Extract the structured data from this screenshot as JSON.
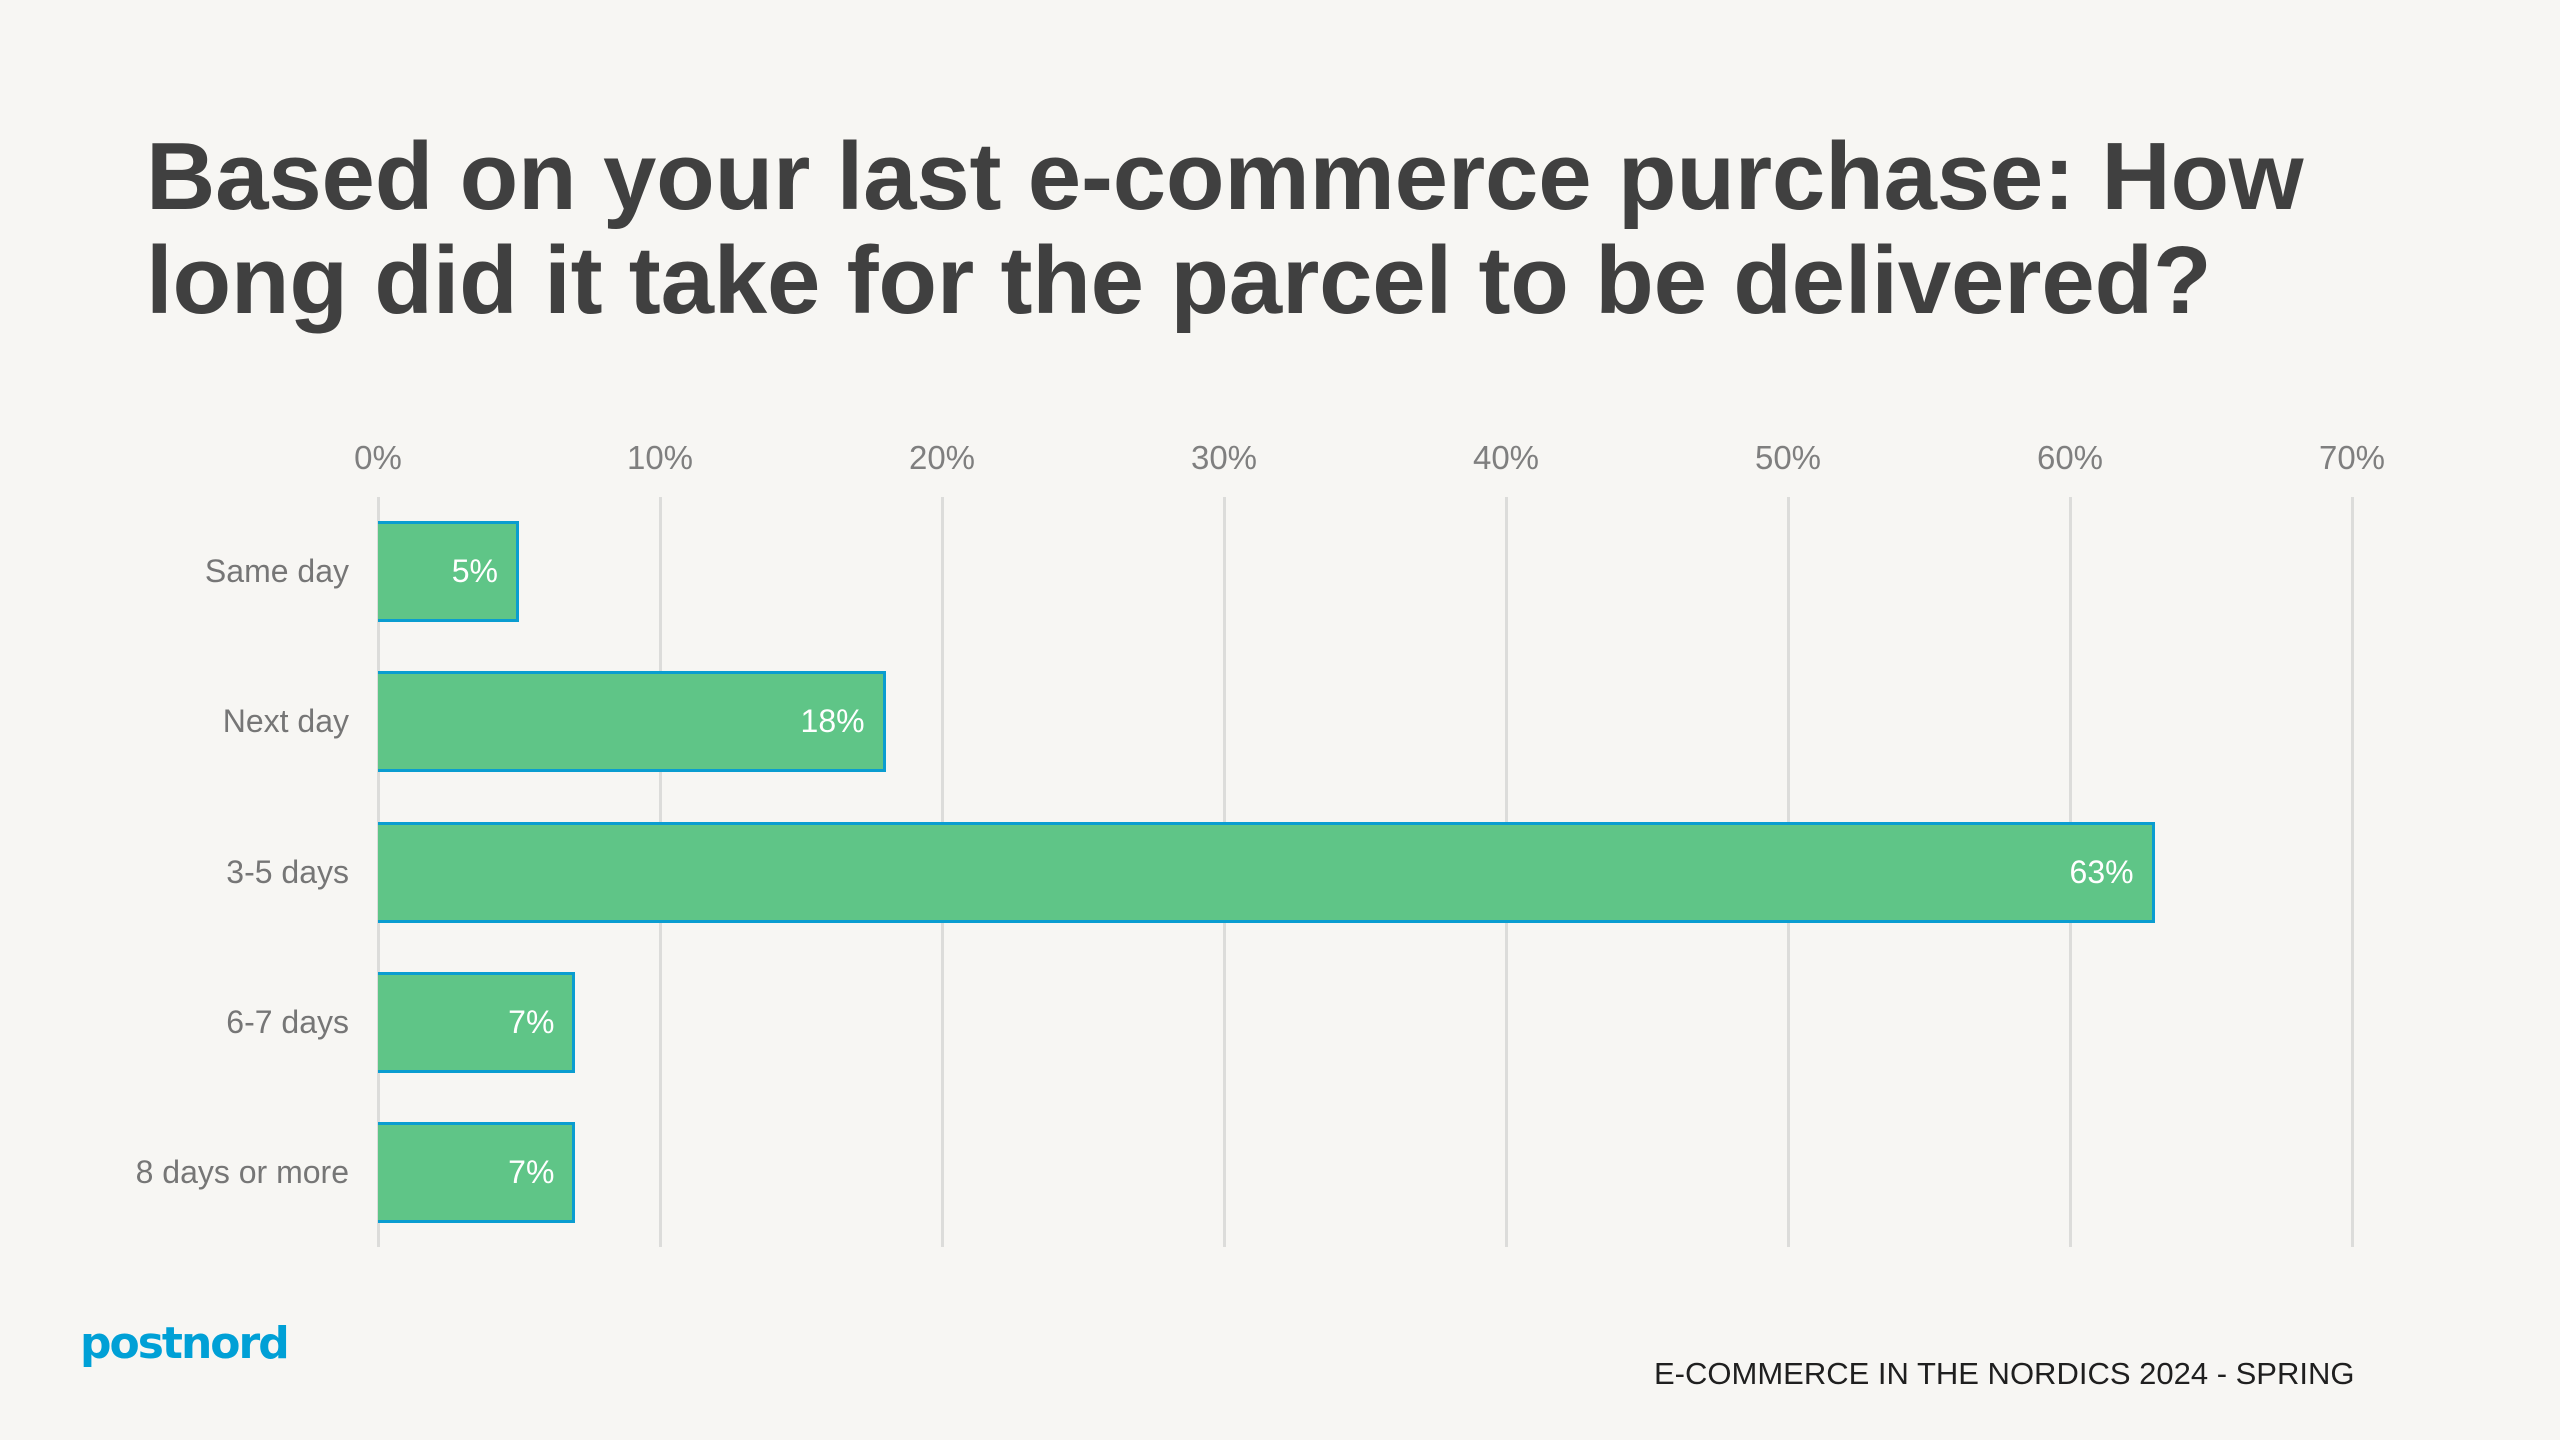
{
  "title": "Based on your last e-commerce purchase: How long did it take for the parcel to be delivered?",
  "footer": {
    "logo": "postnord",
    "report": "E-COMMERCE IN THE NORDICS 2024 - SPRING"
  },
  "colors": {
    "bar_fill": "#5FC587",
    "bar_border": "#0A9DD0",
    "background": "#F7F6F3",
    "title": "#404040",
    "logo": "#00A0D6"
  },
  "axis": {
    "ticks": [
      "0%",
      "10%",
      "20%",
      "30%",
      "40%",
      "50%",
      "60%",
      "70%"
    ]
  },
  "bars": [
    {
      "label": "Same day",
      "value": 5,
      "value_label": "5%"
    },
    {
      "label": "Next day",
      "value": 18,
      "value_label": "18%"
    },
    {
      "label": "3-5 days",
      "value": 63,
      "value_label": "63%"
    },
    {
      "label": "6-7 days",
      "value": 7,
      "value_label": "7%"
    },
    {
      "label": "8 days or more",
      "value": 7,
      "value_label": "7%"
    }
  ],
  "chart_data": {
    "type": "bar",
    "orientation": "horizontal",
    "title": "Based on your last e-commerce purchase: How long did it take for the parcel to be delivered?",
    "categories": [
      "Same day",
      "Next day",
      "3-5 days",
      "6-7 days",
      "8 days or more"
    ],
    "values": [
      5,
      18,
      63,
      7,
      7
    ],
    "data_labels": [
      "5%",
      "18%",
      "63%",
      "7%",
      "7%"
    ],
    "xlabel": "",
    "ylabel": "",
    "xlim": [
      0,
      70
    ],
    "x_ticks": [
      "0%",
      "10%",
      "20%",
      "30%",
      "40%",
      "50%",
      "60%",
      "70%"
    ],
    "x_axis_position": "top",
    "grid": true,
    "legend": null,
    "unit": "%"
  }
}
